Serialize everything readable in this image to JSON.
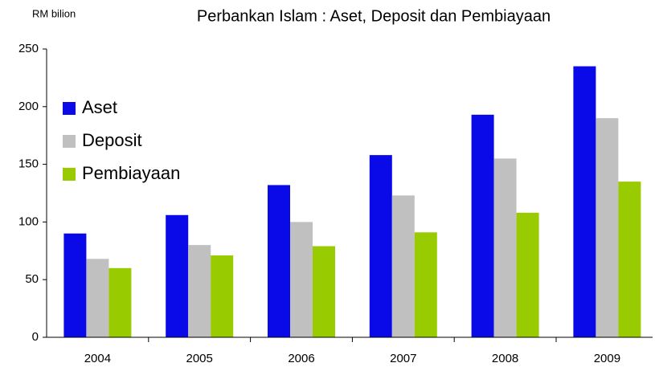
{
  "chart_data": {
    "type": "bar",
    "title": "Perbankan Islam : Aset, Deposit dan Pembiayaan",
    "y_axis_label": "RM bilion",
    "categories": [
      "2004",
      "2005",
      "2006",
      "2007",
      "2008",
      "2009"
    ],
    "series": [
      {
        "name": "Aset",
        "color": "#0a0ae8",
        "values": [
          90,
          106,
          132,
          158,
          193,
          235
        ]
      },
      {
        "name": "Deposit",
        "color": "#c0c0c0",
        "values": [
          68,
          80,
          100,
          123,
          155,
          190
        ]
      },
      {
        "name": "Pembiayaan",
        "color": "#99cc00",
        "values": [
          60,
          71,
          79,
          91,
          108,
          135
        ]
      }
    ],
    "ylim": [
      0,
      250
    ],
    "yticks": [
      0,
      50,
      100,
      150,
      200,
      250
    ],
    "grid": false,
    "legend": "upper left"
  }
}
